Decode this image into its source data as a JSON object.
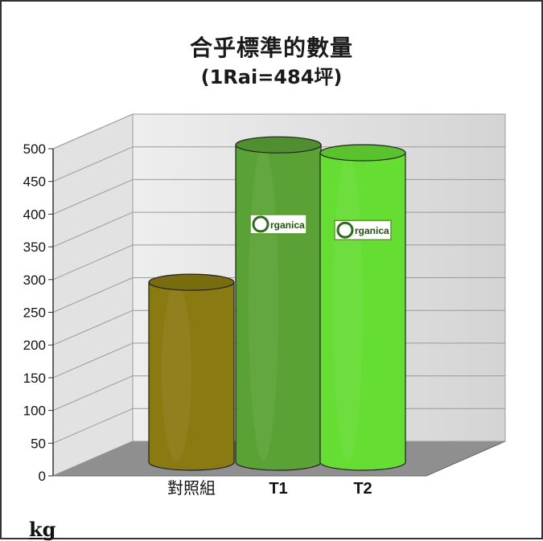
{
  "chart_data": {
    "type": "bar",
    "title": "合乎標準的數量",
    "subtitle": "(1Rai=484坪)",
    "ylabel": "kg",
    "xlabel": "",
    "categories": [
      "對照組",
      "T1",
      "T2"
    ],
    "values": [
      275,
      485,
      473
    ],
    "bar_colors": [
      "#8a7a12",
      "#5aa236",
      "#66dd33"
    ],
    "bar_labels": [
      "",
      "Organica",
      "Organica"
    ],
    "ylim": [
      0,
      500
    ],
    "yticks": [
      0,
      50,
      100,
      150,
      200,
      250,
      300,
      350,
      400,
      450,
      500
    ],
    "grid": true,
    "legend": "none",
    "style": "3d-cylinder"
  }
}
